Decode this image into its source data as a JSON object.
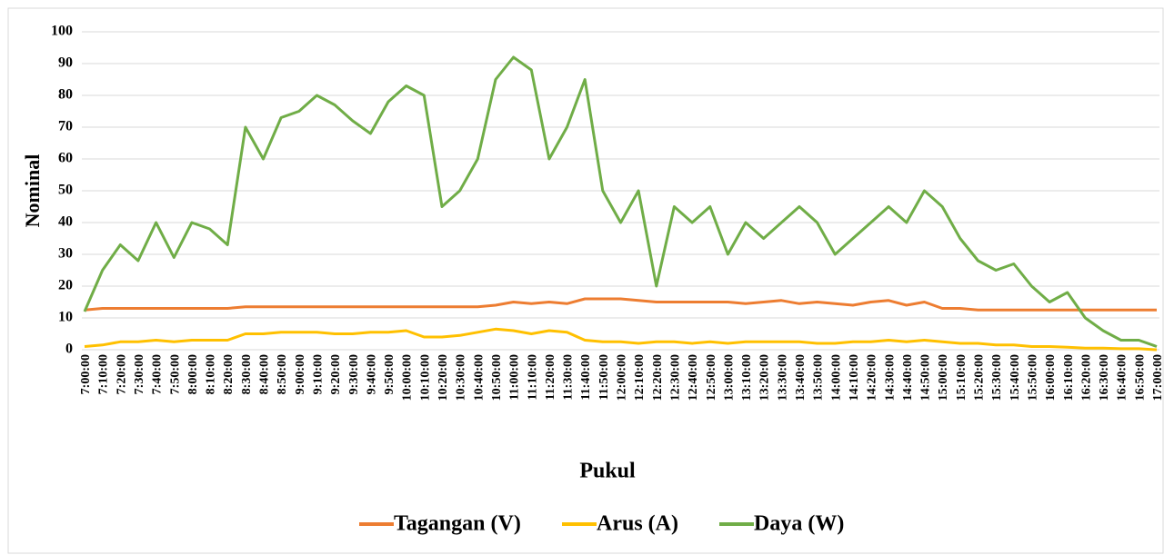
{
  "chart_data": {
    "type": "line",
    "x_label": "Pukul",
    "y_label": "Nominal",
    "categories": [
      "7:00:00",
      "7:10:00",
      "7:20:00",
      "7:30:00",
      "7:40:00",
      "7:50:00",
      "8:00:00",
      "8:10:00",
      "8:20:00",
      "8:30:00",
      "8:40:00",
      "8:50:00",
      "9:00:00",
      "9:10:00",
      "9:20:00",
      "9:30:00",
      "9:40:00",
      "9:50:00",
      "10:00:00",
      "10:10:00",
      "10:20:00",
      "10:30:00",
      "10:40:00",
      "10:50:00",
      "11:00:00",
      "11:10:00",
      "11:20:00",
      "11:30:00",
      "11:40:00",
      "11:50:00",
      "12:00:00",
      "12:10:00",
      "12:20:00",
      "12:30:00",
      "12:40:00",
      "12:50:00",
      "13:00:00",
      "13:10:00",
      "13:20:00",
      "13:30:00",
      "13:40:00",
      "13:50:00",
      "14:00:00",
      "14:10:00",
      "14:20:00",
      "14:30:00",
      "14:40:00",
      "14:50:00",
      "15:00:00",
      "15:10:00",
      "15:20:00",
      "15:30:00",
      "15:40:00",
      "15:50:00",
      "16:00:00",
      "16:10:00",
      "16:20:00",
      "16:30:00",
      "16:40:00",
      "16:50:00",
      "17:00:00"
    ],
    "series": [
      {
        "name": "Tagangan (V)",
        "color": "#ed7d31",
        "values": [
          12.5,
          13,
          13,
          13,
          13,
          13,
          13,
          13,
          13,
          13.5,
          13.5,
          13.5,
          13.5,
          13.5,
          13.5,
          13.5,
          13.5,
          13.5,
          13.5,
          13.5,
          13.5,
          13.5,
          13.5,
          14,
          15,
          14.5,
          15,
          14.5,
          16,
          16,
          16,
          15.5,
          15,
          15,
          15,
          15,
          15,
          14.5,
          15,
          15.5,
          14.5,
          15,
          14.5,
          14,
          15,
          15.5,
          14,
          15,
          13,
          13,
          12.5,
          12.5,
          12.5,
          12.5,
          12.5,
          12.5,
          12.5,
          12.5,
          12.5,
          12.5,
          12.5
        ]
      },
      {
        "name": "Arus (A)",
        "color": "#ffc000",
        "values": [
          1,
          1.5,
          2.5,
          2.5,
          3,
          2.5,
          3,
          3,
          3,
          5,
          5,
          5.5,
          5.5,
          5.5,
          5,
          5,
          5.5,
          5.5,
          6,
          4,
          4,
          4.5,
          5.5,
          6.5,
          6,
          5,
          6,
          5.5,
          3,
          2.5,
          2.5,
          2,
          2.5,
          2.5,
          2,
          2.5,
          2,
          2.5,
          2.5,
          2.5,
          2.5,
          2,
          2,
          2.5,
          2.5,
          3,
          2.5,
          3,
          2.5,
          2,
          2,
          1.5,
          1.5,
          1,
          1,
          0.8,
          0.5,
          0.5,
          0.3,
          0.3,
          0
        ]
      },
      {
        "name": "Daya (W)",
        "color": "#70ad47",
        "values": [
          12,
          25,
          33,
          28,
          40,
          29,
          40,
          38,
          33,
          70,
          60,
          73,
          75,
          80,
          77,
          72,
          68,
          78,
          83,
          80,
          45,
          50,
          60,
          85,
          92,
          88,
          60,
          70,
          85,
          50,
          40,
          50,
          20,
          45,
          40,
          45,
          30,
          40,
          35,
          40,
          45,
          40,
          30,
          35,
          40,
          45,
          40,
          50,
          45,
          35,
          28,
          25,
          27,
          20,
          15,
          18,
          10,
          6,
          3,
          3,
          1
        ]
      }
    ],
    "ylim": [
      0,
      100
    ],
    "yticks": [
      0,
      10,
      20,
      30,
      40,
      50,
      60,
      70,
      80,
      90,
      100
    ],
    "grid": true,
    "legend": "bottom"
  }
}
